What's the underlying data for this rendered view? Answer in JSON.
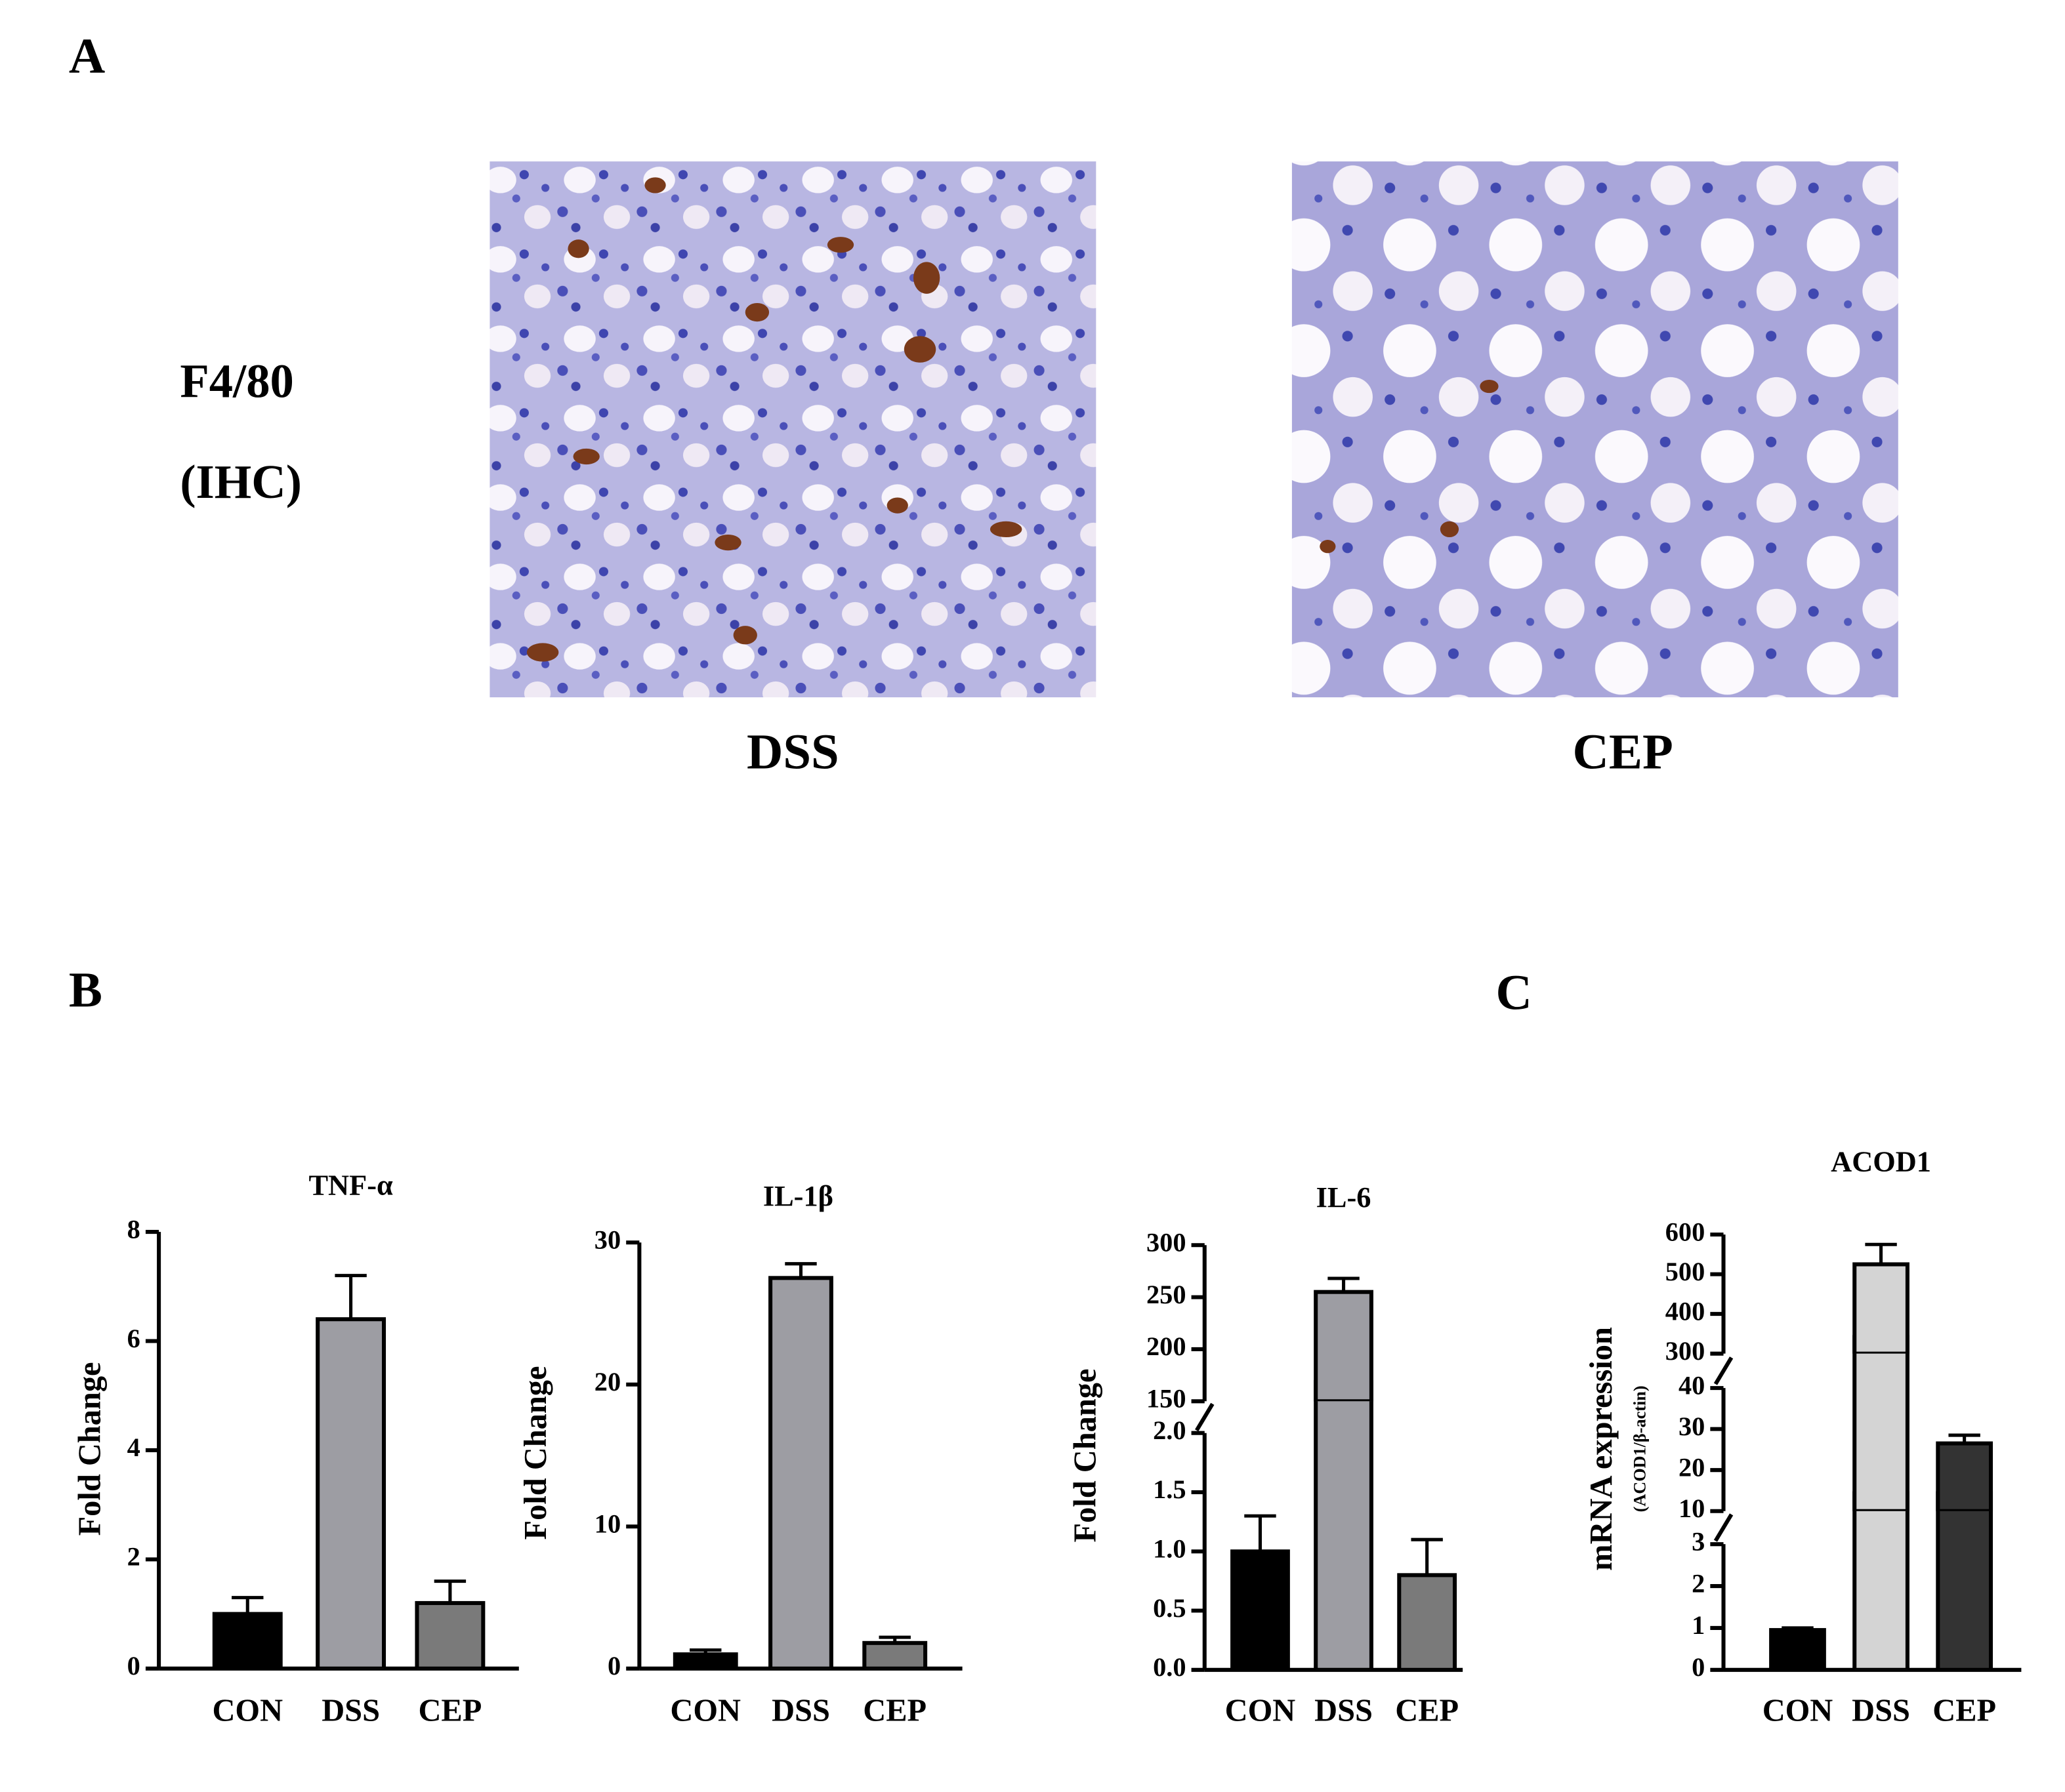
{
  "panels": {
    "a": "A",
    "b": "B",
    "c": "C"
  },
  "ihc": {
    "stain": "F4/80",
    "method": "(IHC)",
    "images": [
      "DSS",
      "CEP"
    ]
  },
  "chart_data": [
    {
      "type": "bar",
      "title": "TNF-α",
      "y_label": "Fold Change",
      "categories": [
        "CON",
        "DSS",
        "CEP"
      ],
      "values": [
        1.0,
        6.4,
        1.2
      ],
      "errors": [
        0.3,
        0.8,
        0.4
      ],
      "colors": [
        "#000000",
        "#9d9da3",
        "#7a7a7a"
      ],
      "ylim": [
        0,
        8
      ],
      "yticks": [
        0,
        2,
        4,
        6,
        8
      ]
    },
    {
      "type": "bar",
      "title": "IL-1β",
      "y_label": "Fold Change",
      "categories": [
        "CON",
        "DSS",
        "CEP"
      ],
      "values": [
        1.0,
        27.5,
        1.8
      ],
      "errors": [
        0.3,
        1.0,
        0.4
      ],
      "colors": [
        "#000000",
        "#9d9da3",
        "#7a7a7a"
      ],
      "ylim": [
        0,
        30
      ],
      "yticks": [
        0,
        10,
        20,
        30
      ]
    },
    {
      "type": "bar",
      "title": "IL-6",
      "y_label": "Fold Change",
      "categories": [
        "CON",
        "DSS",
        "CEP"
      ],
      "values": [
        1.0,
        255,
        0.8
      ],
      "errors": [
        0.3,
        13,
        0.3
      ],
      "colors": [
        "#000000",
        "#9d9da3",
        "#7a7a7a"
      ],
      "y_segments": [
        {
          "ylim": [
            0,
            2
          ],
          "yticks": [
            {
              "value": 0,
              "label": "0.0"
            },
            0.5,
            {
              "value": 1,
              "label": "1.0"
            },
            1.5,
            {
              "value": 2,
              "label": "2.0"
            }
          ]
        },
        {
          "ylim": [
            150,
            300
          ],
          "yticks": [
            150,
            200,
            250,
            300
          ]
        }
      ]
    },
    {
      "type": "bar",
      "title": "ACOD1",
      "y_label": "mRNA expression",
      "y_sublabel": "(ACOD1/β-actin)",
      "categories": [
        "CON",
        "DSS",
        "CEP"
      ],
      "values": [
        0.95,
        525,
        26.5
      ],
      "errors": [
        0.05,
        50,
        2
      ],
      "colors": [
        "#000000",
        "#d4d4d4",
        "#333333"
      ],
      "y_segments": [
        {
          "ylim": [
            0,
            3
          ],
          "yticks": [
            0,
            1,
            2,
            3
          ]
        },
        {
          "ylim": [
            10,
            40
          ],
          "yticks": [
            10,
            20,
            30,
            40
          ]
        },
        {
          "ylim": [
            300,
            600
          ],
          "yticks": [
            300,
            400,
            500,
            600
          ]
        }
      ]
    }
  ]
}
